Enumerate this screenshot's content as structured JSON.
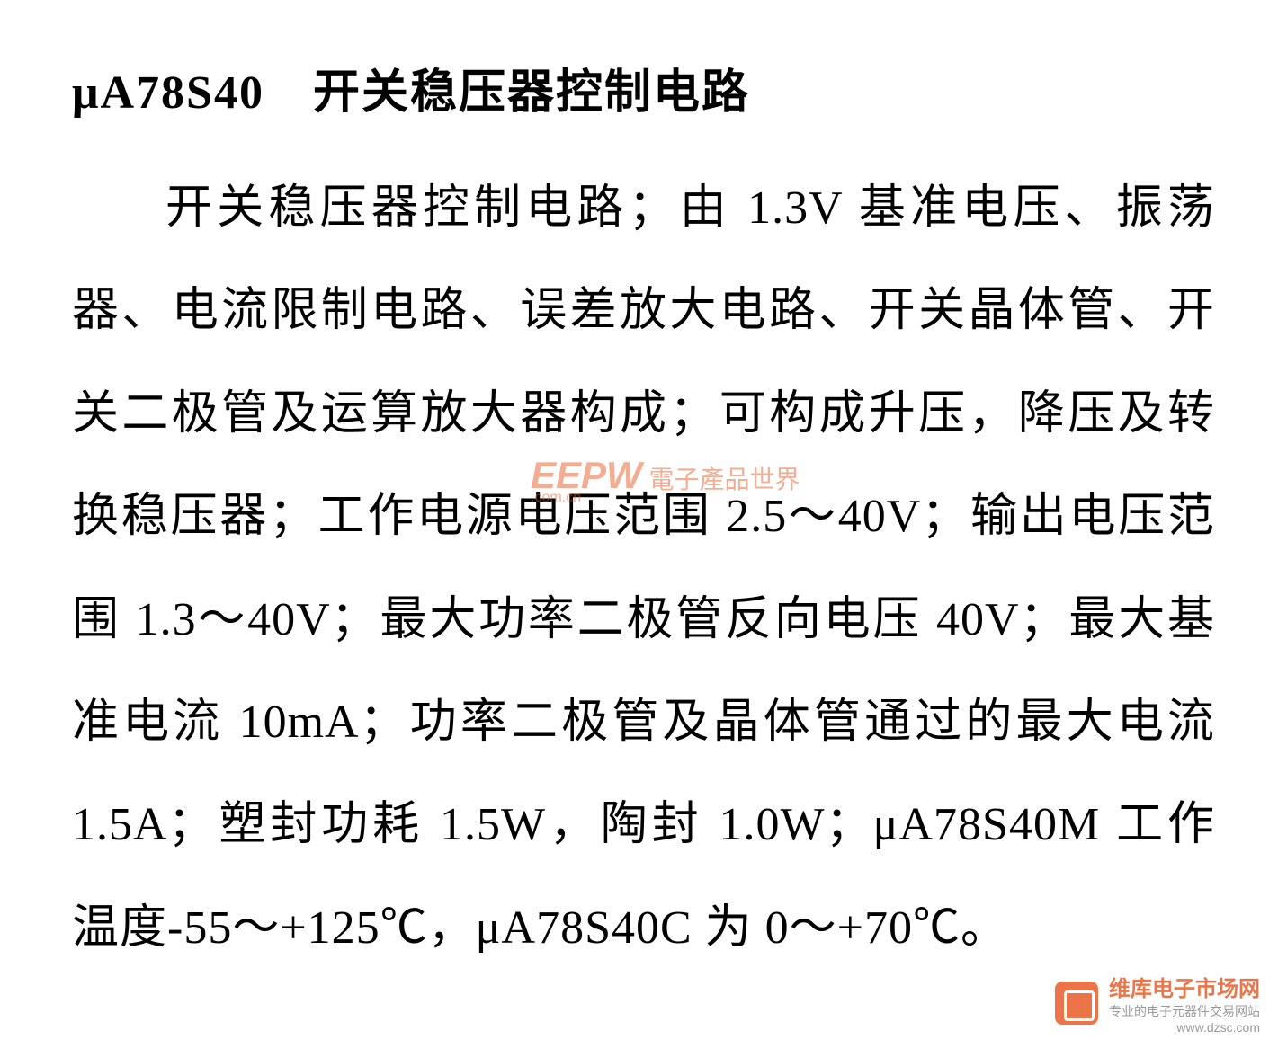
{
  "document": {
    "title": "μA78S40　开关稳压器控制电路",
    "body": "开关稳压器控制电路；由 1.3V 基准电压、振荡器、电流限制电路、误差放大电路、开关晶体管、开关二极管及运算放大器构成；可构成升压，降压及转换稳压器；工作电源电压范围 2.5～40V；输出电压范围 1.3～40V；最大功率二极管反向电压 40V；最大基准电流 10mA；功率二极管及晶体管通过的最大电流 1.5A；塑封功耗 1.5W，陶封 1.0W；μA78S40M 工作温度-55～+125℃，μA78S40C 为 0～+70℃。"
  },
  "watermarks": {
    "eepw": {
      "main": "EEPW",
      "sub1": "電子產品世界",
      "sub2": ".com.cn"
    },
    "weiku": {
      "title": "维库电子市场网",
      "subtitle": "专业的电子元器件交易网站",
      "url": "www.dzsc.com"
    }
  },
  "styling": {
    "background_color": "#ffffff",
    "text_color": "#000000",
    "title_fontsize": 52,
    "body_fontsize": 52,
    "line_height": 2.2,
    "watermark_color": "#e85d2a",
    "font_family": "SimSun"
  }
}
